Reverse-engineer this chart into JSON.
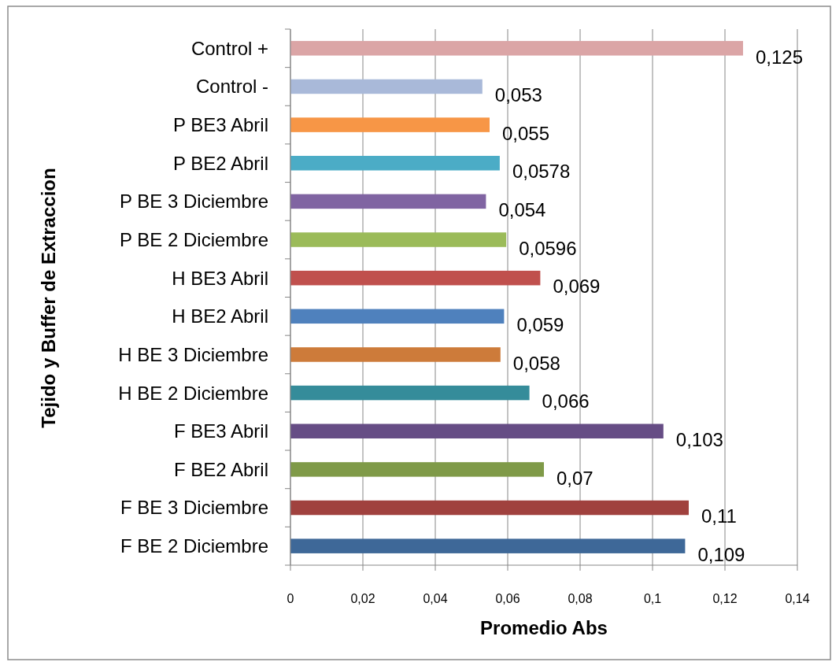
{
  "chart_data": {
    "type": "bar",
    "orientation": "horizontal",
    "xlabel": "Promedio Abs",
    "ylabel": "Tejido y Buffer de Extraccion",
    "categories": [
      "Control +",
      "Control -",
      "P BE3 Abril",
      "P BE2 Abril",
      "P BE 3 Diciembre",
      "P BE 2 Diciembre",
      "H BE3 Abril",
      "H BE2 Abril",
      "H BE 3 Diciembre",
      "H BE 2 Diciembre",
      "F BE3 Abril",
      "F BE2 Abril",
      "F BE 3 Diciembre",
      "F BE 2 Diciembre"
    ],
    "values": [
      0.125,
      0.053,
      0.055,
      0.0578,
      0.054,
      0.0596,
      0.069,
      0.059,
      0.058,
      0.066,
      0.103,
      0.07,
      0.11,
      0.109
    ],
    "value_labels": [
      "0,125",
      "0,053",
      "0,055",
      "0,0578",
      "0,054",
      "0,0596",
      "0,069",
      "0,059",
      "0,058",
      "0,066",
      "0,103",
      "0,07",
      "0,11",
      "0,109"
    ],
    "colors": [
      "#dba5a6",
      "#a9b9d9",
      "#f79646",
      "#4bacc6",
      "#8064a2",
      "#9bbb59",
      "#c0504d",
      "#4f81bd",
      "#cd7b3a",
      "#358c9a",
      "#664d85",
      "#7f9a48",
      "#a0413e",
      "#3e6898"
    ],
    "xlim": [
      0,
      0.14
    ],
    "xticks": [
      0,
      {
        "value": 0.02,
        "label": "0,02"
      },
      {
        "value": 0.04,
        "label": "0,04"
      },
      {
        "value": 0.06,
        "label": "0,06"
      },
      {
        "value": 0.08,
        "label": "0,08"
      },
      {
        "value": 0.1,
        "label": "0,1"
      },
      {
        "value": 0.12,
        "label": "0,12"
      },
      {
        "value": 0.14,
        "label": "0,14"
      }
    ],
    "grid": "x"
  }
}
